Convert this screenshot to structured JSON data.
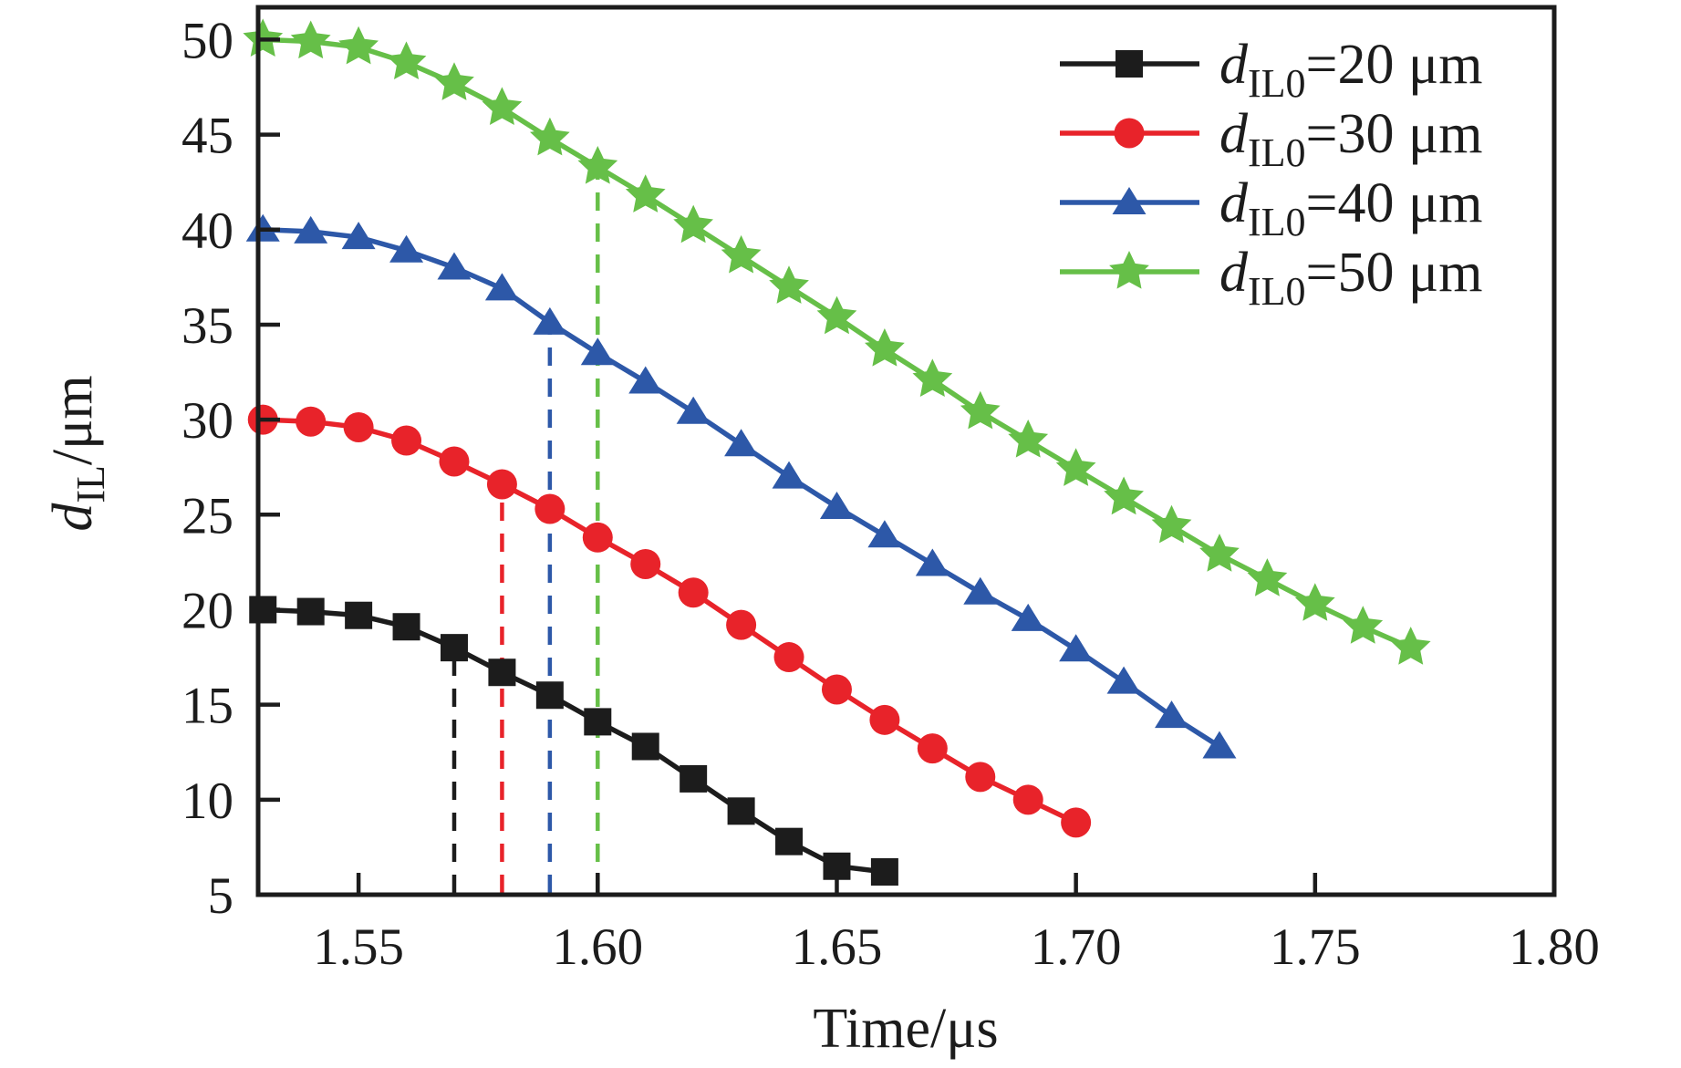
{
  "figure": {
    "background": "#ffffff",
    "axis_color": "#1c1c1c"
  },
  "chart_data": {
    "type": "line",
    "title": "",
    "xlabel": "Time/μs",
    "ylabel": {
      "symbol": "d",
      "subscript": "IL",
      "unit": "/μm"
    },
    "xlim": [
      1.529,
      1.8
    ],
    "ylim": [
      5,
      51.7
    ],
    "x_ticks": [
      1.55,
      1.6,
      1.65,
      1.7,
      1.75,
      1.8
    ],
    "x_tick_labels": [
      "1.55",
      "1.60",
      "1.65",
      "1.70",
      "1.75",
      "1.80"
    ],
    "y_ticks": [
      5,
      10,
      15,
      20,
      25,
      30,
      35,
      40,
      45,
      50
    ],
    "y_tick_labels": [
      "5",
      "10",
      "15",
      "20",
      "25",
      "30",
      "35",
      "40",
      "45",
      "50"
    ],
    "grid": false,
    "legend_position": "top-right",
    "series": [
      {
        "name": "dIL0-20um",
        "legend": {
          "symbol": "d",
          "subscript": "IL0",
          "rest": "=20 μm"
        },
        "color": "#1c1c1c",
        "marker": "square",
        "x": [
          1.53,
          1.54,
          1.55,
          1.56,
          1.57,
          1.58,
          1.59,
          1.6,
          1.61,
          1.62,
          1.63,
          1.64,
          1.65,
          1.66
        ],
        "values": [
          20.0,
          19.9,
          19.7,
          19.1,
          18.0,
          16.7,
          15.5,
          14.1,
          12.8,
          11.1,
          9.4,
          7.8,
          6.5,
          6.2
        ]
      },
      {
        "name": "dIL0-30um",
        "legend": {
          "symbol": "d",
          "subscript": "IL0",
          "rest": "=30 μm"
        },
        "color": "#e8232a",
        "marker": "circle",
        "x": [
          1.53,
          1.54,
          1.55,
          1.56,
          1.57,
          1.58,
          1.59,
          1.6,
          1.61,
          1.62,
          1.63,
          1.64,
          1.65,
          1.66,
          1.67,
          1.68,
          1.69,
          1.7
        ],
        "values": [
          30.0,
          29.9,
          29.6,
          28.9,
          27.8,
          26.6,
          25.3,
          23.8,
          22.4,
          20.9,
          19.2,
          17.5,
          15.8,
          14.2,
          12.7,
          11.2,
          10.0,
          8.8
        ]
      },
      {
        "name": "dIL0-40um",
        "legend": {
          "symbol": "d",
          "subscript": "IL0",
          "rest": "=40 μm"
        },
        "color": "#2d58a8",
        "marker": "triangle",
        "x": [
          1.53,
          1.54,
          1.55,
          1.56,
          1.57,
          1.58,
          1.59,
          1.6,
          1.61,
          1.62,
          1.63,
          1.64,
          1.65,
          1.66,
          1.67,
          1.68,
          1.69,
          1.7,
          1.71,
          1.72,
          1.73
        ],
        "values": [
          40.0,
          39.9,
          39.6,
          38.9,
          38.0,
          36.9,
          35.1,
          33.5,
          32.0,
          30.4,
          28.7,
          27.0,
          25.4,
          23.9,
          22.4,
          20.9,
          19.5,
          17.9,
          16.2,
          14.4,
          12.8
        ]
      },
      {
        "name": "dIL0-50um",
        "legend": {
          "symbol": "d",
          "subscript": "IL0",
          "rest": "=50 μm"
        },
        "color": "#66bf48",
        "marker": "star",
        "x": [
          1.53,
          1.54,
          1.55,
          1.56,
          1.57,
          1.58,
          1.59,
          1.6,
          1.61,
          1.62,
          1.63,
          1.64,
          1.65,
          1.66,
          1.67,
          1.68,
          1.69,
          1.7,
          1.71,
          1.72,
          1.73,
          1.74,
          1.75,
          1.76,
          1.77
        ],
        "values": [
          50.0,
          49.9,
          49.6,
          48.8,
          47.7,
          46.4,
          44.8,
          43.3,
          41.8,
          40.2,
          38.6,
          37.0,
          35.4,
          33.7,
          32.1,
          30.4,
          28.9,
          27.4,
          25.9,
          24.4,
          22.9,
          21.6,
          20.3,
          19.1,
          18.0
        ]
      }
    ],
    "dashed_guides": [
      {
        "x": 1.57,
        "y_top": 18.0,
        "color": "#1c1c1c"
      },
      {
        "x": 1.58,
        "y_top": 26.6,
        "color": "#e8232a"
      },
      {
        "x": 1.59,
        "y_top": 35.1,
        "color": "#2d58a8"
      },
      {
        "x": 1.6,
        "y_top": 43.3,
        "color": "#66bf48"
      }
    ]
  }
}
